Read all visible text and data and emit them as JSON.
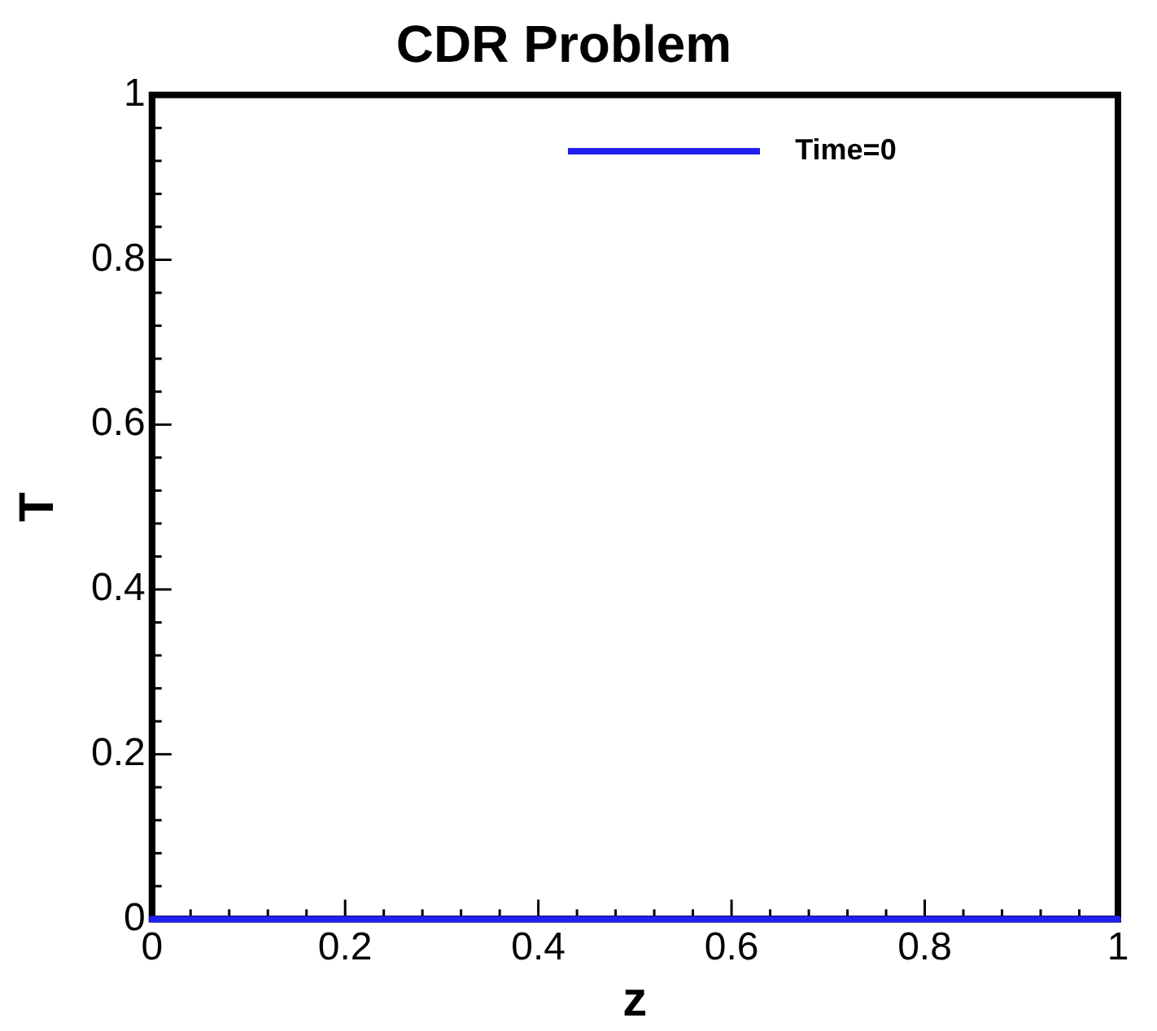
{
  "chart_data": {
    "type": "line",
    "title": "CDR Problem",
    "xlabel": "z",
    "ylabel": "T",
    "x": [
      0,
      1
    ],
    "series": [
      {
        "name": "Time=0",
        "color": "#2020f0",
        "values": [
          0,
          0
        ]
      }
    ],
    "xlim": [
      0,
      1
    ],
    "ylim": [
      0,
      1
    ],
    "xticks": [
      0,
      {
        "value": 0.04,
        "label": null
      },
      {
        "value": 0.08,
        "label": null
      },
      {
        "value": 0.12,
        "label": null
      },
      {
        "value": 0.16,
        "label": null
      },
      0.2,
      {
        "value": 0.24,
        "label": null
      },
      {
        "value": 0.28,
        "label": null
      },
      {
        "value": 0.32,
        "label": null
      },
      {
        "value": 0.36,
        "label": null
      },
      0.4,
      {
        "value": 0.44,
        "label": null
      },
      {
        "value": 0.48,
        "label": null
      },
      {
        "value": 0.52,
        "label": null
      },
      {
        "value": 0.56,
        "label": null
      },
      0.6,
      {
        "value": 0.64,
        "label": null
      },
      {
        "value": 0.68,
        "label": null
      },
      {
        "value": 0.72,
        "label": null
      },
      {
        "value": 0.76,
        "label": null
      },
      0.8,
      {
        "value": 0.84,
        "label": null
      },
      {
        "value": 0.88,
        "label": null
      },
      {
        "value": 0.92,
        "label": null
      },
      {
        "value": 0.96,
        "label": null
      },
      1
    ],
    "yticks": [
      0,
      {
        "value": 0.04,
        "label": null
      },
      {
        "value": 0.08,
        "label": null
      },
      {
        "value": 0.12,
        "label": null
      },
      {
        "value": 0.16,
        "label": null
      },
      0.2,
      {
        "value": 0.24,
        "label": null
      },
      {
        "value": 0.28,
        "label": null
      },
      {
        "value": 0.32,
        "label": null
      },
      {
        "value": 0.36,
        "label": null
      },
      0.4,
      {
        "value": 0.44,
        "label": null
      },
      {
        "value": 0.48,
        "label": null
      },
      {
        "value": 0.52,
        "label": null
      },
      {
        "value": 0.56,
        "label": null
      },
      0.6,
      {
        "value": 0.64,
        "label": null
      },
      {
        "value": 0.68,
        "label": null
      },
      {
        "value": 0.72,
        "label": null
      },
      {
        "value": 0.76,
        "label": null
      },
      0.8,
      {
        "value": 0.84,
        "label": null
      },
      {
        "value": 0.88,
        "label": null
      },
      {
        "value": 0.92,
        "label": null
      },
      {
        "value": 0.96,
        "label": null
      },
      1
    ],
    "grid": false,
    "legend": "top right",
    "line_style": "solid"
  }
}
